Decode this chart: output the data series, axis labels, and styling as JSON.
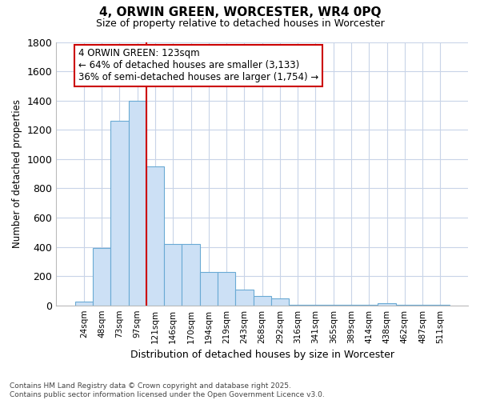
{
  "title1": "4, ORWIN GREEN, WORCESTER, WR4 0PQ",
  "title2": "Size of property relative to detached houses in Worcester",
  "xlabel": "Distribution of detached houses by size in Worcester",
  "ylabel": "Number of detached properties",
  "categories": [
    "24sqm",
    "48sqm",
    "73sqm",
    "97sqm",
    "121sqm",
    "146sqm",
    "170sqm",
    "194sqm",
    "219sqm",
    "243sqm",
    "268sqm",
    "292sqm",
    "316sqm",
    "341sqm",
    "365sqm",
    "389sqm",
    "414sqm",
    "438sqm",
    "462sqm",
    "487sqm",
    "511sqm"
  ],
  "values": [
    25,
    390,
    1260,
    1400,
    950,
    420,
    420,
    230,
    230,
    110,
    65,
    45,
    5,
    5,
    5,
    5,
    5,
    15,
    5,
    5,
    5
  ],
  "bar_color": "#cce0f5",
  "bar_edge_color": "#6aaad4",
  "grid_color": "#c8d4e8",
  "vline_color": "#cc0000",
  "vline_position": 3.5,
  "annotation_text": "4 ORWIN GREEN: 123sqm\n← 64% of detached houses are smaller (3,133)\n36% of semi-detached houses are larger (1,754) →",
  "footnote1": "Contains HM Land Registry data © Crown copyright and database right 2025.",
  "footnote2": "Contains public sector information licensed under the Open Government Licence v3.0.",
  "ylim_max": 1800,
  "yticks": [
    0,
    200,
    400,
    600,
    800,
    1000,
    1200,
    1400,
    1600,
    1800
  ],
  "bg_color": "#ffffff",
  "ann_box_color": "#cc0000",
  "ann_box_bg": "#ffffff"
}
